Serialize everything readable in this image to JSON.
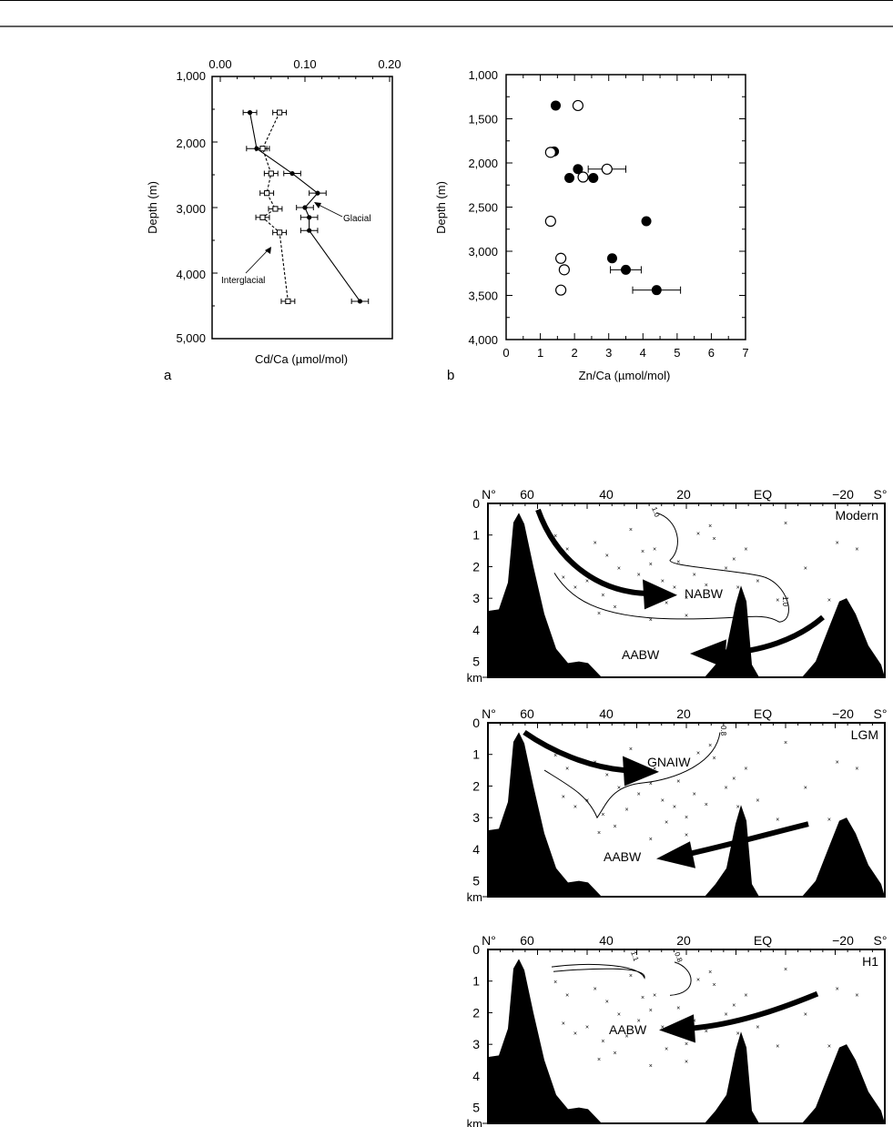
{
  "panel_a": {
    "label": "a",
    "xlabel": "Cd/Ca (µmol/mol)",
    "ylabel": "Depth (m)",
    "xticks": [
      "0.00",
      "0.10",
      "0.20"
    ],
    "yticks": [
      "1,000",
      "2,000",
      "3,000",
      "4,000",
      "5,000"
    ],
    "annotations": {
      "glacial": "Glacial",
      "interglacial": "Interglacial"
    }
  },
  "panel_b": {
    "label": "b",
    "xlabel": "Zn/Ca (µmol/mol)",
    "ylabel": "Depth (m)",
    "xticks": [
      "0",
      "1",
      "2",
      "3",
      "4",
      "5",
      "6",
      "7"
    ],
    "yticks": [
      "1,000",
      "1,500",
      "2,000",
      "2,500",
      "3,000",
      "3,500",
      "4,000"
    ]
  },
  "sections": {
    "top_labels": [
      "N°",
      "60",
      "40",
      "20",
      "EQ",
      "−20",
      "S°"
    ],
    "depth_ticks": [
      "0",
      "1",
      "2",
      "3",
      "4",
      "5"
    ],
    "km": "km",
    "panels": [
      {
        "title": "Modern",
        "water_masses": [
          "NABW",
          "AABW"
        ],
        "contours": [
          "1.0",
          "1.0"
        ]
      },
      {
        "title": "LGM",
        "water_masses": [
          "GNAIW",
          "AABW"
        ],
        "contours": [
          "0.8"
        ]
      },
      {
        "title": "H1",
        "water_masses": [
          "AABW"
        ],
        "contours": [
          "1.1",
          "0.8"
        ]
      }
    ]
  },
  "chart_data": [
    {
      "type": "line",
      "panel": "a",
      "x_axis": "Cd/Ca (µmol/mol)",
      "y_axis": "Depth (m)",
      "xlim": [
        0.0,
        0.2
      ],
      "ylim": [
        5000,
        1000
      ],
      "series": [
        {
          "name": "Glacial",
          "marker": "filled-circle",
          "line": "solid",
          "points": [
            {
              "x": 0.035,
              "y": 1550,
              "err": 0.008
            },
            {
              "x": 0.043,
              "y": 2100,
              "err": 0.012
            },
            {
              "x": 0.085,
              "y": 2480,
              "err": 0.01
            },
            {
              "x": 0.115,
              "y": 2780,
              "err": 0.01
            },
            {
              "x": 0.1,
              "y": 3000,
              "err": 0.01
            },
            {
              "x": 0.105,
              "y": 3150,
              "err": 0.01
            },
            {
              "x": 0.105,
              "y": 3350,
              "err": 0.01
            },
            {
              "x": 0.165,
              "y": 4430,
              "err": 0.01
            }
          ]
        },
        {
          "name": "Interglacial",
          "marker": "open-square",
          "line": "dashed",
          "points": [
            {
              "x": 0.07,
              "y": 1550,
              "err": 0.008
            },
            {
              "x": 0.05,
              "y": 2100,
              "err": 0.008
            },
            {
              "x": 0.06,
              "y": 2480,
              "err": 0.008
            },
            {
              "x": 0.055,
              "y": 2780,
              "err": 0.008
            },
            {
              "x": 0.065,
              "y": 3020,
              "err": 0.008
            },
            {
              "x": 0.05,
              "y": 3150,
              "err": 0.008
            },
            {
              "x": 0.07,
              "y": 3380,
              "err": 0.008
            },
            {
              "x": 0.08,
              "y": 4430,
              "err": 0.008
            }
          ]
        }
      ]
    },
    {
      "type": "scatter",
      "panel": "b",
      "x_axis": "Zn/Ca (µmol/mol)",
      "y_axis": "Depth (m)",
      "xlim": [
        0,
        7
      ],
      "ylim": [
        4000,
        1000
      ],
      "series": [
        {
          "marker": "filled-circle",
          "points": [
            {
              "x": 1.45,
              "y": 1350
            },
            {
              "x": 1.4,
              "y": 1870
            },
            {
              "x": 2.1,
              "y": 2070
            },
            {
              "x": 1.85,
              "y": 2170
            },
            {
              "x": 2.55,
              "y": 2170
            },
            {
              "x": 4.1,
              "y": 2660
            },
            {
              "x": 3.1,
              "y": 3080
            },
            {
              "x": 3.5,
              "y": 3210,
              "err": 0.45
            },
            {
              "x": 4.4,
              "y": 3440,
              "err": 0.7
            }
          ]
        },
        {
          "marker": "open-circle",
          "points": [
            {
              "x": 2.1,
              "y": 1350
            },
            {
              "x": 1.3,
              "y": 1880
            },
            {
              "x": 2.95,
              "y": 2070,
              "err": 0.55
            },
            {
              "x": 2.25,
              "y": 2160
            },
            {
              "x": 1.3,
              "y": 2660
            },
            {
              "x": 1.6,
              "y": 3080
            },
            {
              "x": 1.7,
              "y": 3210
            },
            {
              "x": 1.6,
              "y": 3440
            }
          ]
        }
      ]
    }
  ]
}
